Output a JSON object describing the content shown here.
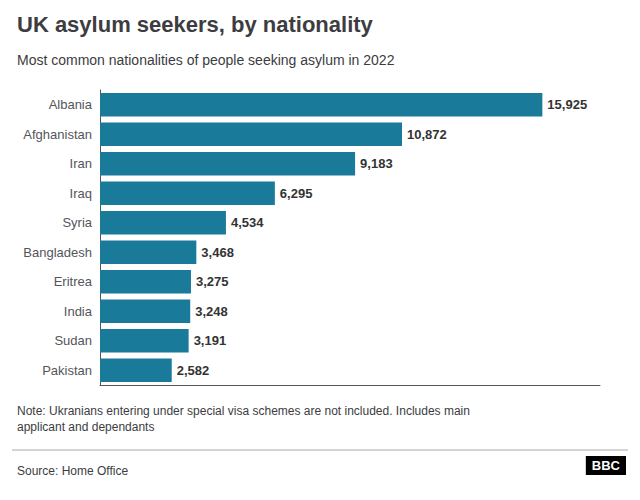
{
  "chart_data": {
    "type": "bar",
    "orientation": "horizontal",
    "title": "UK asylum seekers, by nationality",
    "subtitle": "Most common nationalities of people seeking asylum in 2022",
    "note": "Note: Ukranians entering under special visa schemes are not included. Includes main\napplicant and dependants",
    "source": "Source: Home Office",
    "logo": "BBC",
    "categories": [
      "Albania",
      "Afghanistan",
      "Iran",
      "Iraq",
      "Syria",
      "Bangladesh",
      "Eritrea",
      "India",
      "Sudan",
      "Pakistan"
    ],
    "values": [
      15925,
      10872,
      9183,
      6295,
      4534,
      3468,
      3275,
      3248,
      3191,
      2582
    ],
    "value_labels": [
      "15,925",
      "10,872",
      "9,183",
      "6,295",
      "4,534",
      "3,468",
      "3,275",
      "3,248",
      "3,191",
      "2,582"
    ],
    "data_labels": true,
    "color": "#1a7a9a",
    "xlim": [
      0,
      18000
    ],
    "tick_labels": "y",
    "grid": false
  }
}
